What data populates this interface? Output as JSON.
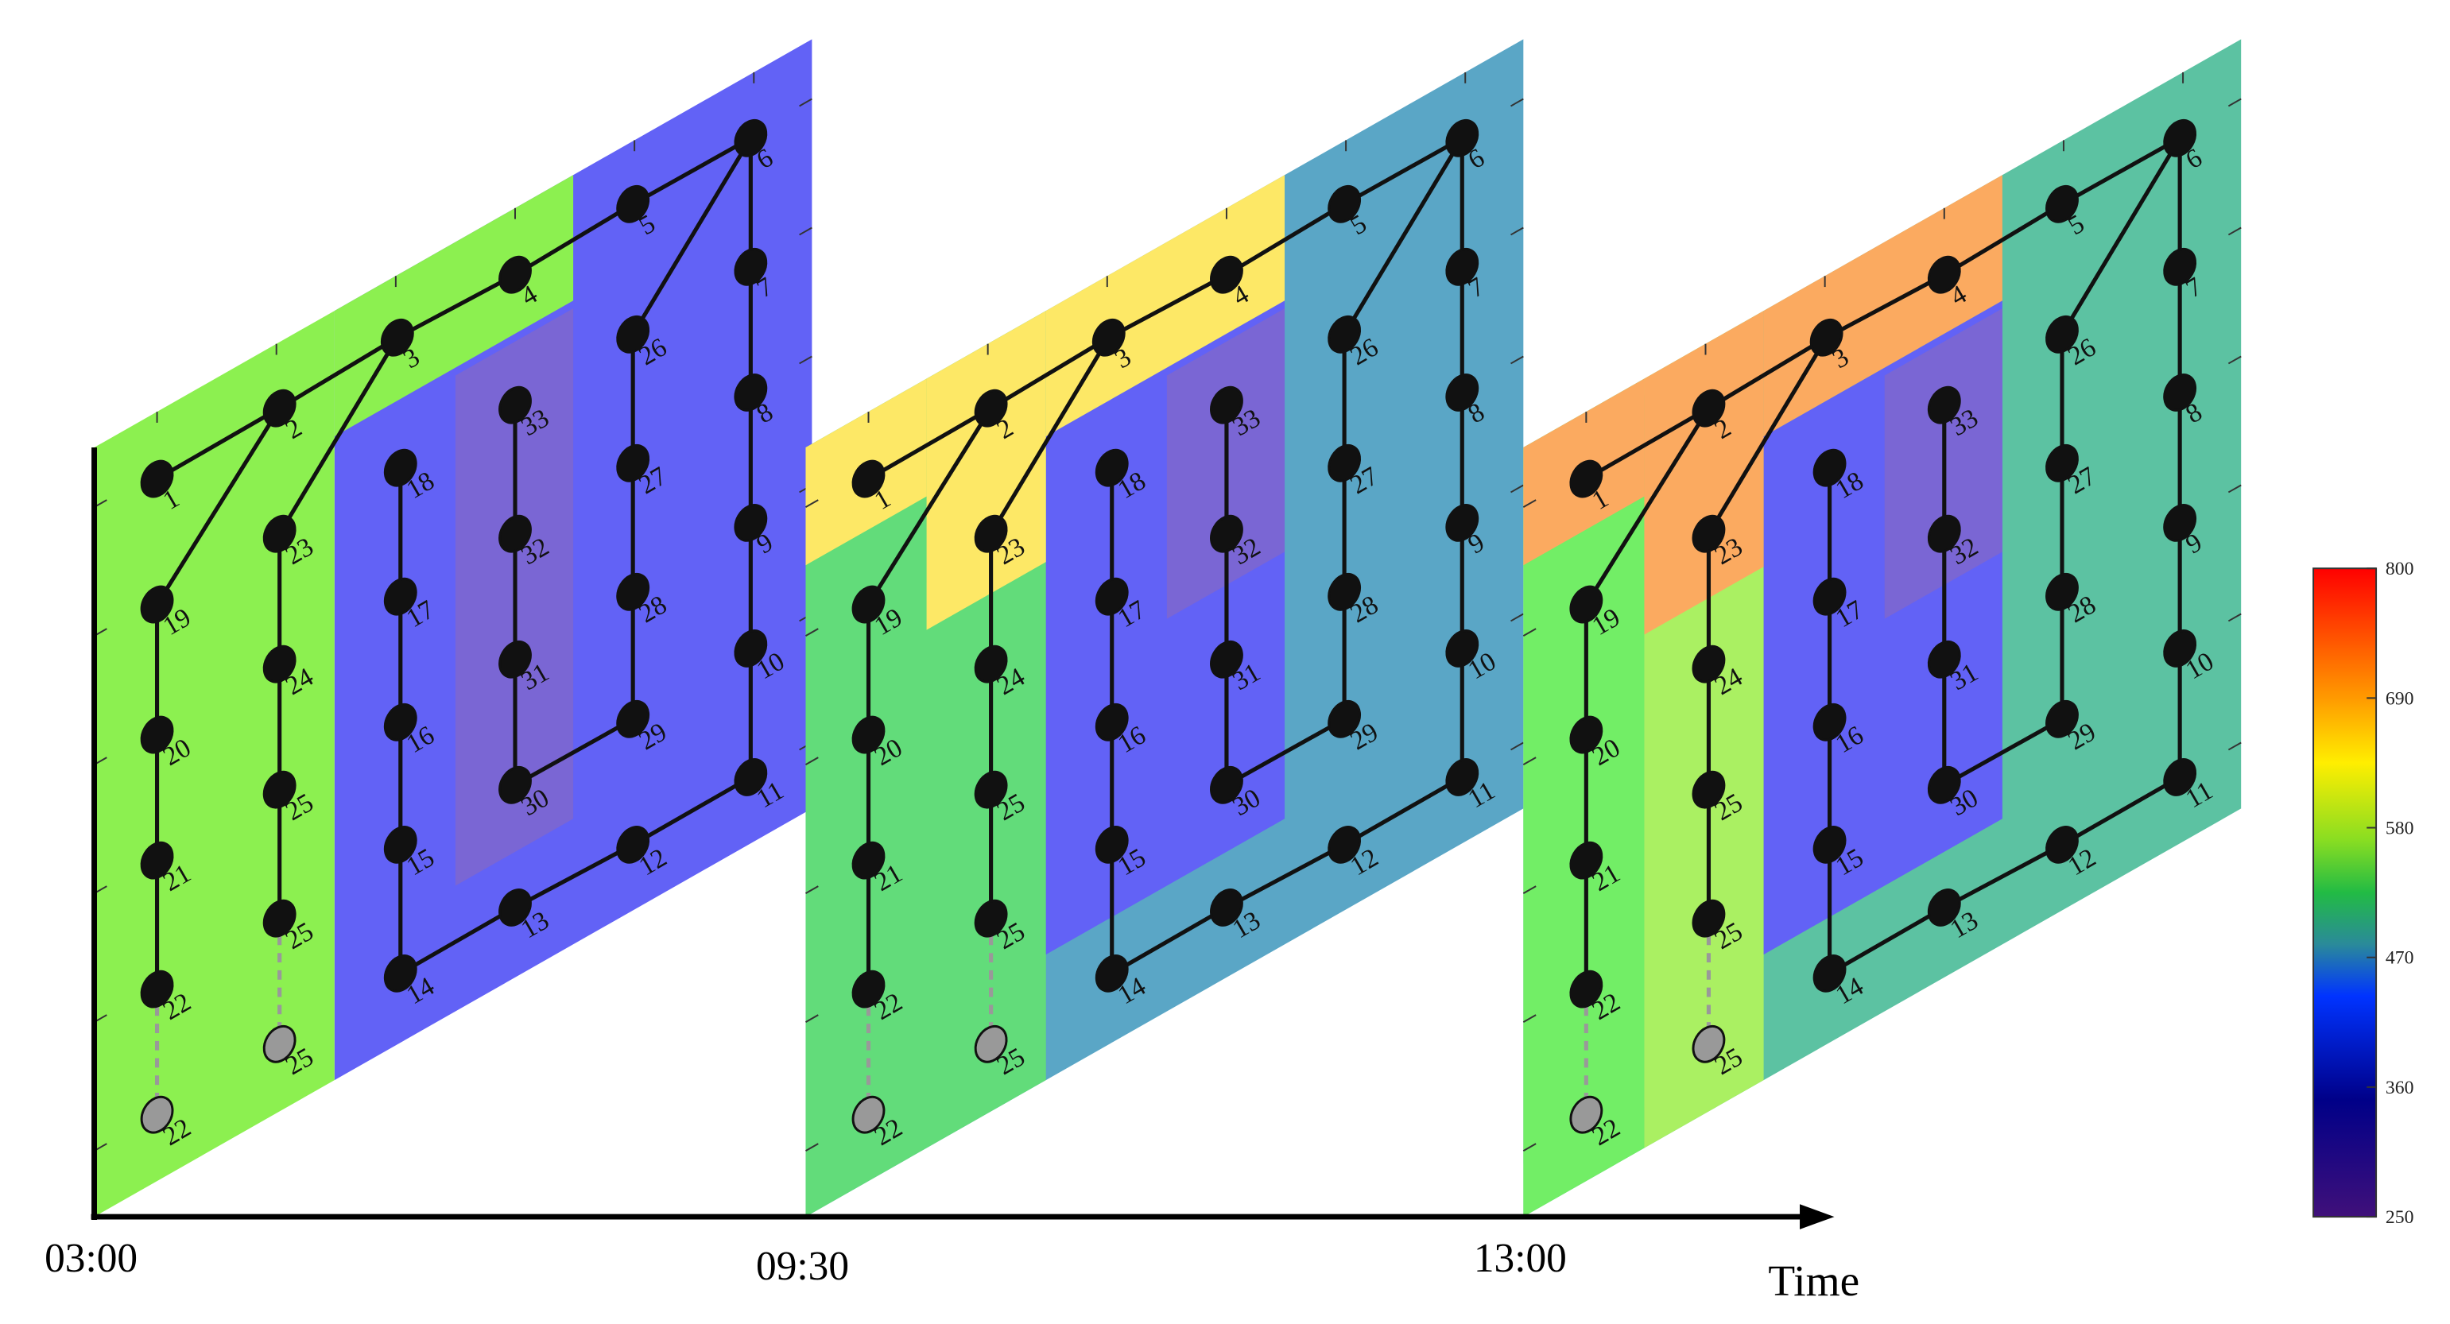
{
  "panels": [
    {
      "time": "03:00",
      "node_labels": [
        "1",
        "2",
        "3",
        "4",
        "5",
        "6",
        "7",
        "8",
        "9",
        "10",
        "11",
        "12",
        "13",
        "14",
        "15",
        "16",
        "17",
        "18",
        "19",
        "20",
        "21",
        "22",
        "23",
        "24",
        "25",
        "26",
        "27",
        "28",
        "29",
        "30",
        "31",
        "32",
        "33",
        "25",
        "22",
        "25"
      ]
    },
    {
      "time": "09:30",
      "node_labels": [
        "1",
        "2",
        "3",
        "4",
        "5",
        "6",
        "7",
        "8",
        "9",
        "10",
        "11",
        "12",
        "13",
        "14",
        "15",
        "16",
        "17",
        "18",
        "19",
        "20",
        "21",
        "22",
        "23",
        "24",
        "25",
        "26",
        "27",
        "28",
        "29",
        "30",
        "31",
        "32",
        "33",
        "25",
        "22",
        "25"
      ]
    },
    {
      "time": "13:00",
      "node_labels": [
        "1",
        "2",
        "3",
        "4",
        "5",
        "6",
        "7",
        "8",
        "9",
        "10",
        "11",
        "12",
        "13",
        "14",
        "15",
        "16",
        "17",
        "18",
        "19",
        "20",
        "21",
        "22",
        "23",
        "24",
        "25",
        "26",
        "27",
        "28",
        "29",
        "30",
        "31",
        "32",
        "33",
        "25",
        "22",
        "25"
      ]
    }
  ],
  "axis_label": "Time",
  "colorbar": {
    "ticks": [
      800,
      690,
      580,
      470,
      360,
      250
    ]
  }
}
